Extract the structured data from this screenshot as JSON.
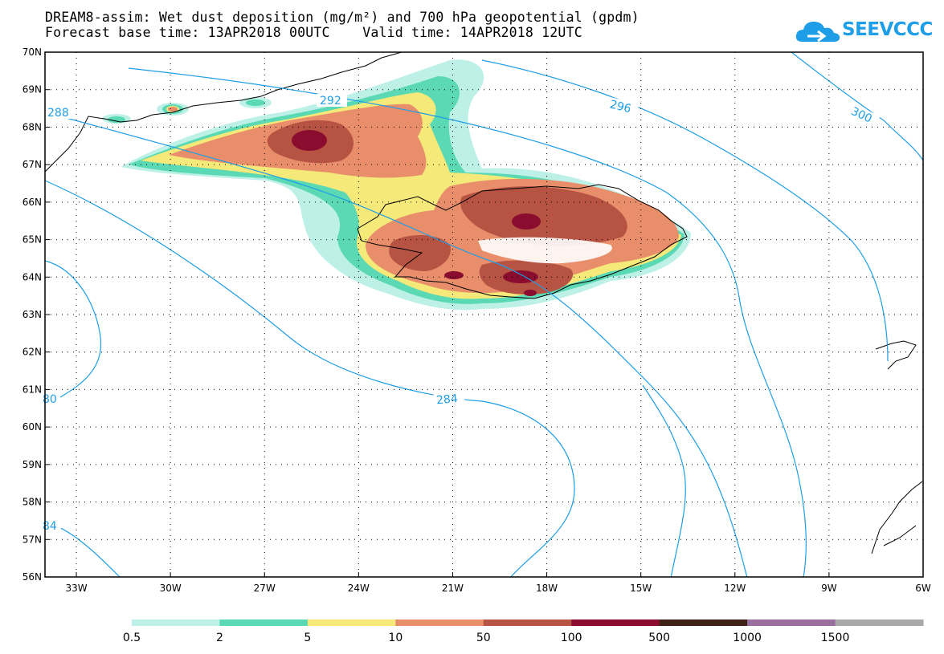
{
  "title_line1": "DREAM8-assim: Wet dust deposition (mg/m²) and 700 hPa geopotential (gpdm)",
  "title_line2": "Forecast base time: 13APR2018 00UTC    Valid time: 14APR2018 12UTC",
  "logo_text": "SEEVCCC",
  "map": {
    "lon_range": [
      -34,
      -6
    ],
    "lat_range": [
      56,
      70
    ],
    "lat_labels": [
      "70N",
      "69N",
      "68N",
      "67N",
      "66N",
      "65N",
      "64N",
      "63N",
      "62N",
      "61N",
      "60N",
      "59N",
      "58N",
      "57N",
      "56N"
    ],
    "lon_labels": [
      "33W",
      "30W",
      "27W",
      "24W",
      "21W",
      "18W",
      "15W",
      "12W",
      "9W",
      "6W"
    ],
    "contour_color": "#1e9ee6",
    "contour_labels": [
      "288",
      "292",
      "296",
      "300",
      "284",
      "80",
      "84"
    ]
  },
  "colorbar": {
    "ticks": [
      "0.5",
      "2",
      "5",
      "10",
      "50",
      "100",
      "500",
      "1000",
      "1500"
    ],
    "colors": [
      "#bdf0e6",
      "#5ad9b4",
      "#f5e97a",
      "#e88e6b",
      "#b65343",
      "#8a0c2e",
      "#3e2117",
      "#9a6fa0",
      "#a8a8a8"
    ]
  },
  "icons": {
    "logo": "cloud-icon"
  }
}
